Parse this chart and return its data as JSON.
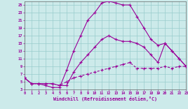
{
  "xlabel": "Windchill (Refroidissement éolien,°C)",
  "bg_color": "#cceaea",
  "line_color": "#990099",
  "grid_color": "#99cccc",
  "xlim": [
    0,
    23
  ],
  "ylim": [
    3,
    26
  ],
  "xticks": [
    0,
    1,
    2,
    3,
    4,
    5,
    6,
    7,
    8,
    9,
    10,
    11,
    12,
    13,
    14,
    15,
    16,
    17,
    18,
    19,
    20,
    21,
    22,
    23
  ],
  "yticks": [
    3,
    5,
    7,
    9,
    11,
    13,
    15,
    17,
    19,
    21,
    23,
    25
  ],
  "curve_peak_x": [
    0,
    1,
    2,
    3,
    4,
    5,
    6,
    7,
    8,
    9,
    10,
    11,
    12,
    13,
    14,
    15,
    16,
    17,
    18,
    19,
    20,
    21,
    22,
    23
  ],
  "curve_peak_y": [
    6,
    4.5,
    4.5,
    4,
    3.5,
    3.5,
    8,
    13,
    17,
    21,
    23,
    25.5,
    26,
    25.5,
    25,
    25,
    22,
    19,
    16,
    14.5,
    15,
    13,
    11,
    9
  ],
  "curve_mid_x": [
    0,
    1,
    2,
    3,
    4,
    5,
    6,
    7,
    8,
    9,
    10,
    11,
    12,
    13,
    14,
    15,
    16,
    17,
    18,
    19,
    20,
    21,
    22,
    23
  ],
  "curve_mid_y": [
    6,
    4.5,
    4.5,
    4.5,
    4.5,
    4,
    4,
    7.5,
    10,
    12,
    14,
    16,
    17,
    16,
    15.5,
    15.5,
    15,
    14,
    12,
    10,
    15,
    13,
    11,
    9
  ],
  "curve_low_x": [
    0,
    1,
    2,
    3,
    4,
    5,
    6,
    7,
    8,
    9,
    10,
    11,
    12,
    13,
    14,
    15,
    16,
    17,
    18,
    19,
    20,
    21,
    22,
    23
  ],
  "curve_low_y": [
    6,
    4.5,
    4.5,
    4.5,
    4.5,
    4,
    5,
    6,
    6.5,
    7,
    7.5,
    8,
    8.5,
    9,
    9.5,
    10,
    8.5,
    8.5,
    8.5,
    8.5,
    9,
    8.5,
    9,
    9
  ]
}
